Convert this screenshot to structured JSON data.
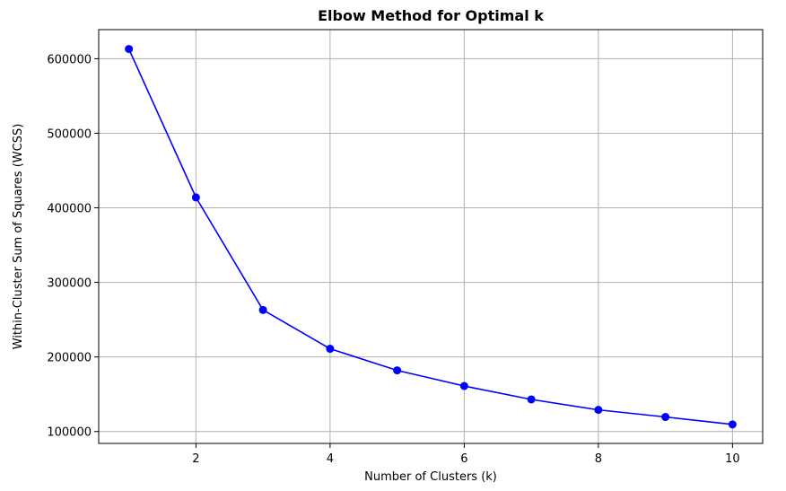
{
  "chart_data": {
    "type": "line",
    "title": "Elbow Method for Optimal k",
    "xlabel": "Number of Clusters (k)",
    "ylabel": "Within-Cluster Sum of Squares (WCSS)",
    "x": [
      1,
      2,
      3,
      4,
      5,
      6,
      7,
      8,
      9,
      10
    ],
    "series": [
      {
        "values": [
          613000,
          414000,
          263000,
          211000,
          182000,
          161000,
          143000,
          129000,
          119500,
          109500
        ],
        "color": "#0000ff",
        "marker": "circle"
      }
    ],
    "xlim": [
      0.55,
      10.45
    ],
    "ylim": [
      84000,
      639000
    ],
    "xticks": [
      2,
      4,
      6,
      8,
      10
    ],
    "yticks": [
      100000,
      200000,
      300000,
      400000,
      500000,
      600000
    ],
    "xtick_labels": [
      "2",
      "4",
      "6",
      "8",
      "10"
    ],
    "ytick_labels": [
      "100000",
      "200000",
      "300000",
      "400000",
      "500000",
      "600000"
    ],
    "grid": true,
    "grid_color": "#b0b0b0",
    "legend": false
  }
}
